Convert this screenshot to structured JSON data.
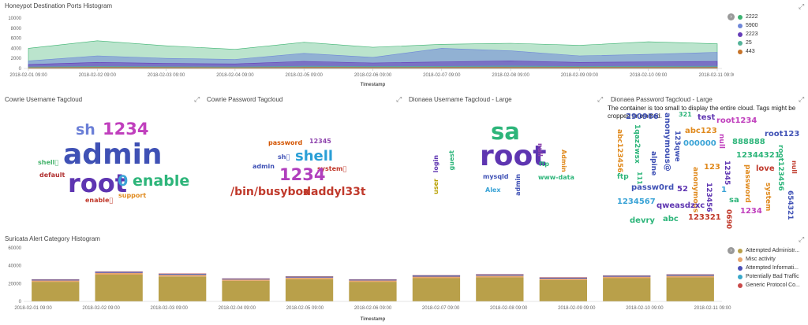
{
  "honeypot": {
    "title": "Honeypot Destination Ports Histogram",
    "xaxis_title": "Timestamp",
    "y_ticks": [
      "10000",
      "8000",
      "6000",
      "4000",
      "2000",
      "0"
    ],
    "x_ticks": [
      "2018-02-01 09:00",
      "2018-02-02 09:00",
      "2018-02-03 09:00",
      "2018-02-04 09:00",
      "2018-02-05 09:00",
      "2018-02-06 09:00",
      "2018-02-07 09:00",
      "2018-02-08 09:00",
      "2018-02-09 09:00",
      "2018-02-10 09:00",
      "2018-02-11 09:00"
    ],
    "legend": [
      {
        "label": "2222",
        "color": "#3cb371"
      },
      {
        "label": "5900",
        "color": "#6f87d8"
      },
      {
        "label": "2223",
        "color": "#663db8"
      },
      {
        "label": "25",
        "color": "#54b399"
      },
      {
        "label": "443",
        "color": "#c7742a"
      }
    ]
  },
  "cowrie_user": {
    "title": "Cowrie Username Tagcloud",
    "words": [
      {
        "text": "admin",
        "color": "#3f51b5"
      },
      {
        "text": "root",
        "color": "#5e35b1"
      },
      {
        "text": "sh",
        "color": "#6b7fd7"
      },
      {
        "text": "1234",
        "color": "#c03fbd"
      },
      {
        "text": "enable",
        "color": "#2db57a"
      },
      {
        "text": "0",
        "color": "#3aa3d6"
      },
      {
        "text": "shell\u0000",
        "color": "#44b36b"
      },
      {
        "text": "default",
        "color": "#b03030"
      },
      {
        "text": "enable\u0000",
        "color": "#c0392b"
      },
      {
        "text": "support",
        "color": "#e08a1e"
      }
    ]
  },
  "cowrie_pass": {
    "title": "Cowrie Password Tagcloud",
    "words": [
      {
        "text": "password",
        "color": "#d35400"
      },
      {
        "text": "12345",
        "color": "#8e44ad"
      },
      {
        "text": "shell",
        "color": "#2a9fd6"
      },
      {
        "text": "sh\u0000",
        "color": "#3f51b5"
      },
      {
        "text": "admin",
        "color": "#3f51b5"
      },
      {
        "text": "1234",
        "color": "#b03fbd"
      },
      {
        "text": "system\u0000",
        "color": "#c0392b"
      },
      {
        "text": "/bin/busybox",
        "color": "#c0392b"
      },
      {
        "text": "daddyl33t",
        "color": "#c0392b"
      }
    ]
  },
  "dionaea_user": {
    "title": "Dionaea Username Tagcloud - Large",
    "words": [
      {
        "text": "sa",
        "color": "#2db57a"
      },
      {
        "text": "root",
        "color": "#5e35b1"
      },
      {
        "text": "mysqld",
        "color": "#3f51b5"
      },
      {
        "text": "Alex",
        "color": "#3aa3d6"
      },
      {
        "text": "login",
        "color": "#5e35b1"
      },
      {
        "text": "guest",
        "color": "#2db57a"
      },
      {
        "text": "user",
        "color": "#b8a000"
      },
      {
        "text": "admin",
        "color": "#3f51b5"
      },
      {
        "text": "null",
        "color": "#8e44ad"
      },
      {
        "text": "ftp",
        "color": "#2db57a"
      },
      {
        "text": "Admin",
        "color": "#e08a1e"
      },
      {
        "text": "www-data",
        "color": "#2db57a"
      }
    ]
  },
  "dionaea_pass": {
    "title": "Dionaea Password Tagcloud - Large",
    "warning": "The container is too small to display the entire cloud. Tags might be cropped or omitted.",
    "words": [
      {
        "text": "290966",
        "color": "#3f51b5"
      },
      {
        "text": "anonymous@",
        "color": "#3f51b5"
      },
      {
        "text": "test",
        "color": "#5e35b1"
      },
      {
        "text": "root1234",
        "color": "#c03fbd"
      },
      {
        "text": "Ew2fE3",
        "color": "#e08a1e"
      },
      {
        "text": "321",
        "color": "#2db57a"
      },
      {
        "text": "abc123",
        "color": "#e08a1e"
      },
      {
        "text": "abc123456",
        "color": "#e08a1e"
      },
      {
        "text": "1qaz2wsx",
        "color": "#2db57a"
      },
      {
        "text": "alpine",
        "color": "#3f51b5"
      },
      {
        "text": "123qwe",
        "color": "#3f51b5"
      },
      {
        "text": "000000",
        "color": "#3aa3d6"
      },
      {
        "text": "root123",
        "color": "#3f51b5"
      },
      {
        "text": "null",
        "color": "#c03fbd"
      },
      {
        "text": "888888",
        "color": "#2db57a"
      },
      {
        "text": "12344321",
        "color": "#2db57a"
      },
      {
        "text": "ftp",
        "color": "#2db57a"
      },
      {
        "text": "111",
        "color": "#2db57a"
      },
      {
        "text": "root123456",
        "color": "#2db57a"
      },
      {
        "text": "love",
        "color": "#c0392b"
      },
      {
        "text": "null",
        "color": "#c0392b"
      },
      {
        "text": "password",
        "color": "#e08a1e"
      },
      {
        "text": "123",
        "color": "#e08a1e"
      },
      {
        "text": "12345",
        "color": "#5e35b1"
      },
      {
        "text": "anonymous",
        "color": "#e08a1e"
      },
      {
        "text": "1",
        "color": "#3aa3d6"
      },
      {
        "text": "passw0rd",
        "color": "#3f51b5"
      },
      {
        "text": "52",
        "color": "#5e35b1"
      },
      {
        "text": "123456",
        "color": "#5e35b1"
      },
      {
        "text": "sa",
        "color": "#2db57a"
      },
      {
        "text": "system",
        "color": "#e08a1e"
      },
      {
        "text": "1234567",
        "color": "#3aa3d6"
      },
      {
        "text": "qweasdzxc",
        "color": "#5e35b1"
      },
      {
        "text": "654321",
        "color": "#3f51b5"
      },
      {
        "text": "1234",
        "color": "#c03fbd"
      },
      {
        "text": "0690",
        "color": "#c0392b"
      },
      {
        "text": "devry",
        "color": "#2db57a"
      },
      {
        "text": "abc",
        "color": "#2db57a"
      },
      {
        "text": "123321",
        "color": "#c0392b"
      }
    ]
  },
  "suricata": {
    "title": "Suricata Alert Category Histogram",
    "xaxis_title": "Timestamp",
    "y_ticks": [
      "60000",
      "40000",
      "20000",
      "0"
    ],
    "x_ticks": [
      "2018-02-01 09:00",
      "2018-02-02 09:00",
      "2018-02-03 09:00",
      "2018-02-04 09:00",
      "2018-02-05 09:00",
      "2018-02-06 09:00",
      "2018-02-07 09:00",
      "2018-02-08 09:00",
      "2018-02-09 09:00",
      "2018-02-10 09:00",
      "2018-02-11 09:00"
    ],
    "legend": [
      {
        "label": "Attempted Administr...",
        "color": "#b9a04a"
      },
      {
        "label": "Misc activity",
        "color": "#e7a66e"
      },
      {
        "label": "Attempted Informati...",
        "color": "#4a4fb8"
      },
      {
        "label": "Potentially Bad Traffic",
        "color": "#3aa8c9"
      },
      {
        "label": "Generic Protocol Co...",
        "color": "#c94a4a"
      }
    ]
  },
  "chart_data": [
    {
      "type": "area",
      "title": "Honeypot Destination Ports Histogram",
      "xlabel": "Timestamp",
      "ylabel": "",
      "ylim": [
        0,
        10000
      ],
      "x": [
        "2018-02-01 09:00",
        "2018-02-02 09:00",
        "2018-02-03 09:00",
        "2018-02-04 09:00",
        "2018-02-05 09:00",
        "2018-02-06 09:00",
        "2018-02-07 09:00",
        "2018-02-08 09:00",
        "2018-02-09 09:00",
        "2018-02-10 09:00",
        "2018-02-11 09:00"
      ],
      "series": [
        {
          "name": "2222",
          "values": [
            4000,
            5500,
            4500,
            3800,
            5200,
            4200,
            4800,
            5000,
            4600,
            5300,
            4900
          ]
        },
        {
          "name": "5900",
          "values": [
            1500,
            2500,
            2000,
            1800,
            3000,
            2200,
            4000,
            3500,
            2500,
            2800,
            3200
          ]
        },
        {
          "name": "2223",
          "values": [
            800,
            1200,
            1000,
            900,
            1400,
            1100,
            1300,
            1500,
            1200,
            1300,
            1400
          ]
        },
        {
          "name": "25",
          "values": [
            300,
            400,
            350,
            300,
            450,
            400,
            420,
            480,
            400,
            430,
            450
          ]
        },
        {
          "name": "443",
          "values": [
            150,
            200,
            180,
            160,
            220,
            190,
            210,
            230,
            200,
            210,
            220
          ]
        }
      ]
    },
    {
      "type": "bar",
      "title": "Suricata Alert Category Histogram",
      "xlabel": "Timestamp",
      "ylabel": "",
      "ylim": [
        0,
        60000
      ],
      "categories": [
        "2018-02-01 09:00",
        "2018-02-02 09:00",
        "2018-02-03 09:00",
        "2018-02-04 09:00",
        "2018-02-05 09:00",
        "2018-02-06 09:00",
        "2018-02-07 09:00",
        "2018-02-08 09:00",
        "2018-02-09 09:00",
        "2018-02-10 09:00",
        "2018-02-11 09:00"
      ],
      "series": [
        {
          "name": "Attempted Administr...",
          "values": [
            22000,
            30000,
            28000,
            23000,
            25000,
            22000,
            26000,
            27000,
            24000,
            26000,
            27000
          ]
        },
        {
          "name": "Misc activity",
          "values": [
            1500,
            2000,
            1800,
            1500,
            1700,
            1500,
            1800,
            1900,
            1600,
            1700,
            1800
          ]
        },
        {
          "name": "Attempted Informati...",
          "values": [
            800,
            1000,
            900,
            800,
            900,
            800,
            950,
            1000,
            850,
            900,
            950
          ]
        },
        {
          "name": "Potentially Bad Traffic",
          "values": [
            300,
            400,
            350,
            300,
            350,
            300,
            380,
            400,
            330,
            350,
            370
          ]
        },
        {
          "name": "Generic Protocol Co...",
          "values": [
            200,
            250,
            220,
            200,
            220,
            200,
            240,
            260,
            210,
            230,
            240
          ]
        }
      ]
    }
  ]
}
